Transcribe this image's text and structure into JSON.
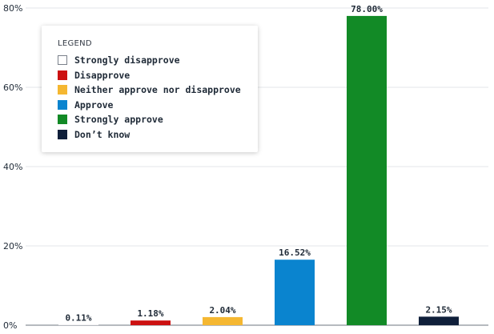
{
  "chart_data": {
    "type": "bar",
    "title": "",
    "xlabel": "",
    "ylabel": "",
    "ylim": [
      0,
      80
    ],
    "yticks": [
      "0%",
      "20%",
      "40%",
      "60%",
      "80%"
    ],
    "grid": true,
    "categories": [
      "Strongly disapprove",
      "Disapprove",
      "Neither approve nor disapprove",
      "Approve",
      "Strongly approve",
      "Don’t know"
    ],
    "values": [
      0.11,
      1.18,
      2.04,
      16.52,
      78.0,
      2.15
    ],
    "value_labels": [
      "0.11%",
      "1.18%",
      "2.04%",
      "16.52%",
      "78.00%",
      "2.15%"
    ],
    "colors": [
      "#ffffff",
      "#cc1111",
      "#f5b731",
      "#0a84cf",
      "#128a26",
      "#0f1f3a"
    ],
    "legend": {
      "title": "LEGEND",
      "placement": "top-left"
    }
  }
}
